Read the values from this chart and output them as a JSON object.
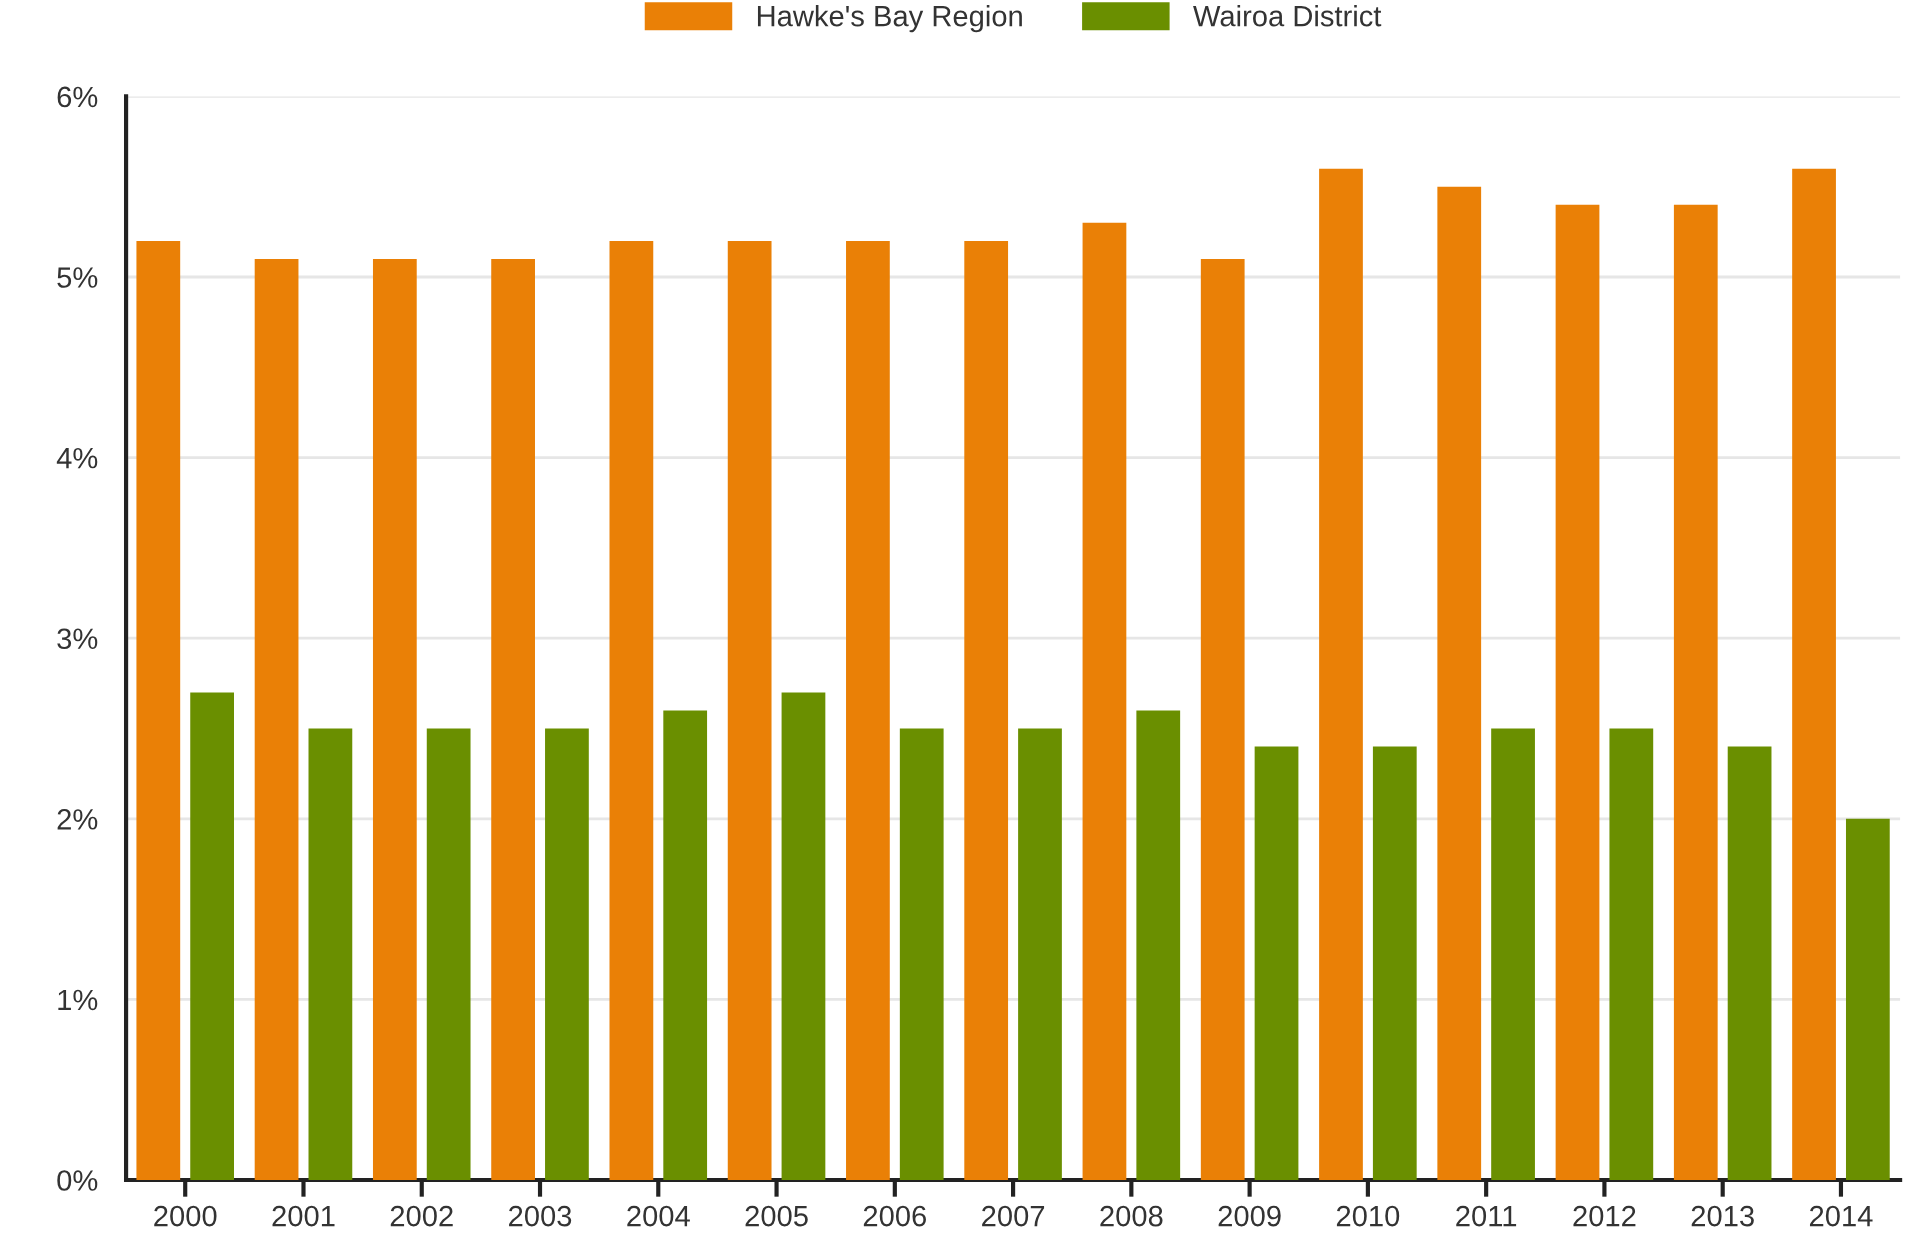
{
  "chart_data": {
    "type": "bar",
    "categories": [
      "2000",
      "2001",
      "2002",
      "2003",
      "2004",
      "2005",
      "2006",
      "2007",
      "2008",
      "2009",
      "2010",
      "2011",
      "2012",
      "2013",
      "2014"
    ],
    "series": [
      {
        "name": "Hawke's Bay Region",
        "color": "#ea8006",
        "values": [
          5.2,
          5.1,
          5.1,
          5.1,
          5.2,
          5.2,
          5.2,
          5.2,
          5.3,
          5.1,
          5.6,
          5.5,
          5.4,
          5.4,
          5.6
        ]
      },
      {
        "name": "Wairoa District",
        "color": "#6a8f00",
        "values": [
          2.7,
          2.5,
          2.5,
          2.5,
          2.6,
          2.7,
          2.5,
          2.5,
          2.6,
          2.4,
          2.4,
          2.5,
          2.5,
          2.4,
          2.0
        ]
      }
    ],
    "ylim": [
      0,
      6
    ],
    "yticks": [
      {
        "value": 0,
        "label": "0%"
      },
      {
        "value": 1,
        "label": "1%"
      },
      {
        "value": 2,
        "label": "2%"
      },
      {
        "value": 3,
        "label": "3%"
      },
      {
        "value": 4,
        "label": "4%"
      },
      {
        "value": 5,
        "label": "5%"
      },
      {
        "value": 6,
        "label": "6%"
      }
    ],
    "grid": "y",
    "legend": "top"
  }
}
